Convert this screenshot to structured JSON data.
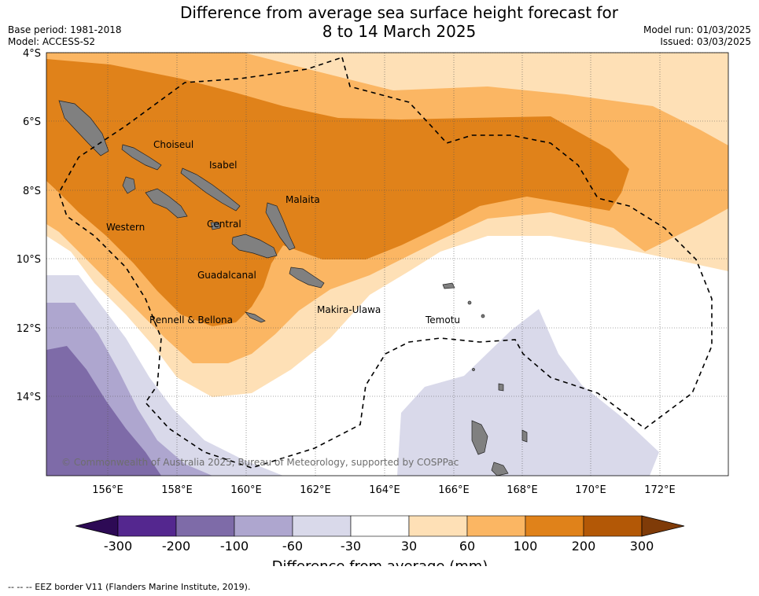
{
  "header": {
    "title_line1": "Difference from average sea surface height forecast for",
    "title_line2": "8 to 14 March 2025",
    "base_period": "Base period: 1981-2018",
    "model": "Model: ACCESS-S2",
    "model_run": "Model run: 01/03/2025",
    "issued": "Issued: 03/03/2025"
  },
  "map": {
    "lat_labels": [
      "4°S",
      "6°S",
      "8°S",
      "10°S",
      "12°S",
      "14°S"
    ],
    "lon_labels": [
      "156°E",
      "158°E",
      "160°E",
      "162°E",
      "164°E",
      "166°E",
      "168°E",
      "170°E",
      "172°E"
    ],
    "regions": [
      "Choiseul",
      "Isabel",
      "Malaita",
      "Western",
      "Central",
      "Guadalcanal",
      "Rennell & Bellona",
      "Makira-Ulawa",
      "Temotu"
    ],
    "copyright": "© Commonwealth of Australia 2025, Bureau of Meteorology, supported by COSPPac",
    "land_color": "#808080",
    "eez_line": "dashed"
  },
  "colorbar": {
    "label": "Difference from average (mm)",
    "ticks": [
      "-300",
      "-200",
      "-100",
      "-60",
      "-30",
      "30",
      "60",
      "100",
      "200",
      "300"
    ],
    "colors": [
      "#2d0a55",
      "#54278f",
      "#7e6ba8",
      "#aea6cf",
      "#d9d9ea",
      "#ffffff",
      "#fee0b6",
      "#fbb663",
      "#e0821a",
      "#b35806",
      "#7f3b08"
    ]
  },
  "footnote": "--  --  -- EEZ border V11 (Flanders Marine Institute, 2019)."
}
